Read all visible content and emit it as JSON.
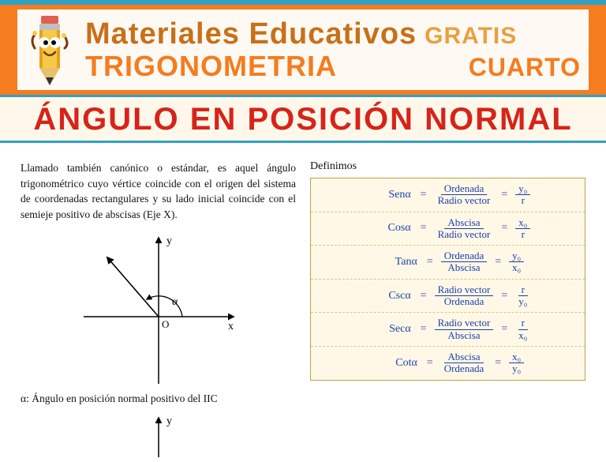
{
  "header": {
    "brand": "Materiales Educativos",
    "free": "GRATIS",
    "subject": "TRIGONOMETRIA",
    "grade": "CUARTO"
  },
  "title": "ÁNGULO EN POSICIÓN NORMAL",
  "intro": "Llamado también canónico o estándar, es aquel ángulo trigonométrico cuyo vértice coincide con el origen del sistema de coordenadas rectangulares y su lado inicial coincide con el semieje positivo de abscisas (Eje X).",
  "diagram": {
    "x_label": "x",
    "y_label": "y",
    "origin": "O",
    "angle": "α"
  },
  "caption": "α: Ángulo en posición normal positivo del IIC",
  "definitions": {
    "heading": "Definimos",
    "rows": [
      {
        "fn": "Senα",
        "word_num": "Ordenada",
        "word_den": "Radio vector",
        "sym_num": "y₀",
        "sym_den": "r"
      },
      {
        "fn": "Cosα",
        "word_num": "Abscisa",
        "word_den": "Radio vector",
        "sym_num": "x₀",
        "sym_den": "r"
      },
      {
        "fn": "Tanα",
        "word_num": "Ordenada",
        "word_den": "Abscisa",
        "sym_num": "y₀",
        "sym_den": "x₀"
      },
      {
        "fn": "Cscα",
        "word_num": "Radio vector",
        "word_den": "Ordenada",
        "sym_num": "r",
        "sym_den": "y₀"
      },
      {
        "fn": "Secα",
        "word_num": "Radio vector",
        "word_den": "Abscisa",
        "sym_num": "r",
        "sym_den": "x₀"
      },
      {
        "fn": "Cotα",
        "word_num": "Abscisa",
        "word_den": "Ordenada",
        "sym_num": "x₀",
        "sym_den": "y₀"
      }
    ]
  },
  "colors": {
    "header_bg": "#f57c1f",
    "top_border": "#30a0c4",
    "title_text": "#d6241a",
    "formula_text": "#1a3fb0",
    "formula_bg": "#fff8e6",
    "formula_border": "#bfa048"
  }
}
